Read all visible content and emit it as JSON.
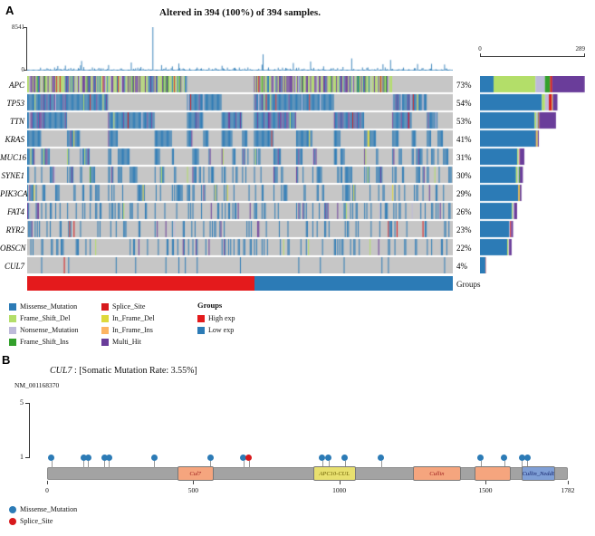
{
  "chart_data": [
    {
      "type": "oncoplot",
      "panel_label": "A",
      "title": "Altered in 394 (100%) of 394 samples.",
      "n_samples": 394,
      "tmb_max": 8541,
      "tmb_axis_labels": [
        "8541",
        "0"
      ],
      "count_max": 289,
      "count_axis_labels": [
        "0",
        "289"
      ],
      "background_color": "#c6c6c6",
      "bar_color": "#2c7bb6",
      "genes": [
        {
          "name": "APC",
          "percent": "73%",
          "count": 288,
          "composition": [
            0.13,
            0.4,
            0.09,
            0.05,
            0.02,
            0,
            0,
            0.31
          ]
        },
        {
          "name": "TP53",
          "percent": "54%",
          "count": 213,
          "composition": [
            0.8,
            0.04,
            0.05,
            0,
            0.04,
            0.01,
            0,
            0.06
          ]
        },
        {
          "name": "TTN",
          "percent": "53%",
          "count": 209,
          "composition": [
            0.72,
            0.02,
            0.02,
            0.01,
            0.01,
            0,
            0,
            0.22
          ]
        },
        {
          "name": "KRAS",
          "percent": "41%",
          "count": 162,
          "composition": [
            0.95,
            0,
            0,
            0,
            0.01,
            0.02,
            0,
            0.02
          ]
        },
        {
          "name": "MUC16",
          "percent": "31%",
          "count": 122,
          "composition": [
            0.84,
            0.03,
            0.02,
            0,
            0.01,
            0,
            0,
            0.1
          ]
        },
        {
          "name": "SYNE1",
          "percent": "30%",
          "count": 118,
          "composition": [
            0.84,
            0.04,
            0.03,
            0.02,
            0,
            0,
            0,
            0.07
          ]
        },
        {
          "name": "PIK3CA",
          "percent": "29%",
          "count": 114,
          "composition": [
            0.92,
            0,
            0,
            0,
            0.01,
            0.03,
            0,
            0.04
          ]
        },
        {
          "name": "FAT4",
          "percent": "26%",
          "count": 102,
          "composition": [
            0.86,
            0.03,
            0.03,
            0,
            0,
            0,
            0,
            0.08
          ]
        },
        {
          "name": "RYR2",
          "percent": "23%",
          "count": 91,
          "composition": [
            0.89,
            0,
            0.02,
            0,
            0.03,
            0,
            0,
            0.06
          ]
        },
        {
          "name": "OBSCN",
          "percent": "22%",
          "count": 87,
          "composition": [
            0.86,
            0.04,
            0.02,
            0,
            0,
            0,
            0,
            0.08
          ]
        },
        {
          "name": "CUL7",
          "percent": "4%",
          "count": 16,
          "composition": [
            0.94,
            0,
            0,
            0,
            0.06,
            0,
            0,
            0
          ]
        }
      ],
      "mutation_types": [
        {
          "label": "Missense_Mutation",
          "color": "#2c7bb6"
        },
        {
          "label": "Frame_Shift_Del",
          "color": "#b3de69"
        },
        {
          "label": "Nonsense_Mutation",
          "color": "#bebada"
        },
        {
          "label": "Frame_Shift_Ins",
          "color": "#33a02c"
        },
        {
          "label": "Splice_Site",
          "color": "#d7191c"
        },
        {
          "label": "In_Frame_Del",
          "color": "#ded93b"
        },
        {
          "label": "In_Frame_Ins",
          "color": "#fdb462"
        },
        {
          "label": "Multi_Hit",
          "color": "#6a3d9a"
        }
      ],
      "groups_track_label": "Groups",
      "groups_legend_header": "Groups",
      "groups": [
        {
          "label": "High exp",
          "color": "#e41a1c",
          "fraction": 0.534
        },
        {
          "label": "Low exp",
          "color": "#2c7bb6",
          "fraction": 0.466
        }
      ]
    },
    {
      "type": "lollipop",
      "panel_label": "B",
      "gene": "CUL7",
      "title_rest": " : [Somatic Mutation Rate: 3.55%]",
      "transcript": "NM_001168370",
      "y_axis_ticks": [
        "5",
        "1"
      ],
      "protein_length": 1782,
      "x_ticks": [
        0,
        500,
        1000,
        1500,
        1782
      ],
      "domains": [
        {
          "name": "Cul7",
          "start": 445,
          "end": 570,
          "color": "#f5a57e",
          "text_color": "#9c1c1c"
        },
        {
          "name": "APC10-CUL",
          "start": 910,
          "end": 1056,
          "color": "#e8e06f",
          "text_color": "#6b5e00"
        },
        {
          "name": "Cullin",
          "start": 1252,
          "end": 1416,
          "color": "#f5a57e",
          "text_color": "#9c1c1c"
        },
        {
          "name": "",
          "start": 1463,
          "end": 1587,
          "color": "#f5a57e",
          "text_color": "#9c1c1c"
        },
        {
          "name": "Cullin_Nedd8",
          "start": 1624,
          "end": 1740,
          "color": "#7f9fd6",
          "text_color": "#15246b"
        }
      ],
      "mutations": [
        {
          "pos": 15,
          "type": "Missense_Mutation",
          "count": 1
        },
        {
          "pos": 124,
          "type": "Missense_Mutation",
          "count": 1
        },
        {
          "pos": 140,
          "type": "Missense_Mutation",
          "count": 1
        },
        {
          "pos": 196,
          "type": "Missense_Mutation",
          "count": 1
        },
        {
          "pos": 211,
          "type": "Missense_Mutation",
          "count": 1
        },
        {
          "pos": 366,
          "type": "Missense_Mutation",
          "count": 1
        },
        {
          "pos": 559,
          "type": "Missense_Mutation",
          "count": 1
        },
        {
          "pos": 671,
          "type": "Missense_Mutation",
          "count": 1
        },
        {
          "pos": 690,
          "type": "Splice_Site",
          "count": 1
        },
        {
          "pos": 941,
          "type": "Missense_Mutation",
          "count": 1
        },
        {
          "pos": 963,
          "type": "Missense_Mutation",
          "count": 1
        },
        {
          "pos": 1019,
          "type": "Missense_Mutation",
          "count": 1
        },
        {
          "pos": 1143,
          "type": "Missense_Mutation",
          "count": 1
        },
        {
          "pos": 1484,
          "type": "Missense_Mutation",
          "count": 1
        },
        {
          "pos": 1565,
          "type": "Missense_Mutation",
          "count": 1
        },
        {
          "pos": 1624,
          "type": "Missense_Mutation",
          "count": 1
        },
        {
          "pos": 1643,
          "type": "Missense_Mutation",
          "count": 1
        }
      ],
      "legend": [
        {
          "label": "Missense_Mutation",
          "color": "#2c7bb6"
        },
        {
          "label": "Splice_Site",
          "color": "#d7191c"
        }
      ]
    }
  ]
}
